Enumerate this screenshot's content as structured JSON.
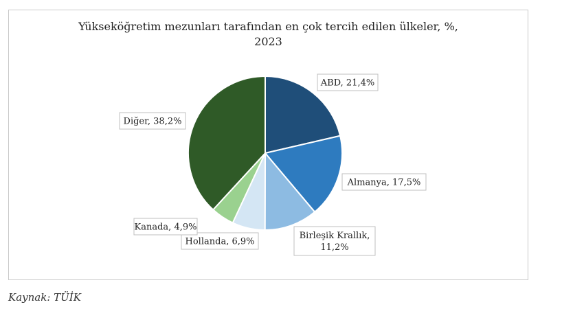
{
  "chart_data": {
    "type": "pie",
    "title": "Yükseköğretim mezunları tarafından en çok tercih edilen ülkeler, %,",
    "title_line2": "2023",
    "slices": [
      {
        "label": "ABD, 21,4%",
        "name": "ABD",
        "value": 21.4,
        "color": "#1f4e79"
      },
      {
        "label": "Almanya, 17,5%",
        "name": "Almanya",
        "value": 17.5,
        "color": "#2e7bbf"
      },
      {
        "label": "Birleşik Krallık, 11,2%",
        "label_lines": [
          "Birleşik Krallık,",
          "11,2%"
        ],
        "name": "Birleşik Krallık",
        "value": 11.2,
        "color": "#8dbbe2"
      },
      {
        "label": "Hollanda, 6,9%",
        "name": "Hollanda",
        "value": 6.9,
        "color": "#d4e6f4"
      },
      {
        "label": "Kanada, 4,9%",
        "name": "Kanada",
        "value": 4.9,
        "color": "#9ad18f"
      },
      {
        "label": "Diğer, 38,2%",
        "name": "Diğer",
        "value": 38.2,
        "color": "#2f5a27"
      }
    ]
  },
  "source": "Kaynak: TÜİK"
}
